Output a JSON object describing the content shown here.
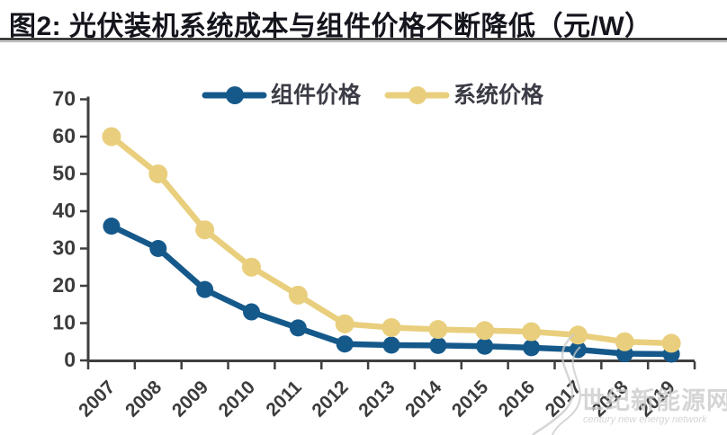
{
  "figure": {
    "title": "图2:  光伏装机系统成本与组件价格不断降低（元/W）"
  },
  "watermark": {
    "cn": "世纪新能源网",
    "en": "century new energy network",
    "color": "#c7c7c7"
  },
  "chart_data": {
    "type": "line",
    "title": "光伏装机系统成本与组件价格不断降低（元/W）",
    "xlabel": "",
    "ylabel": "",
    "categories": [
      "2007",
      "2008",
      "2009",
      "2010",
      "2011",
      "2012",
      "2013",
      "2014",
      "2015",
      "2016",
      "2017",
      "2018",
      "2019"
    ],
    "series": [
      {
        "name": "组件价格",
        "color": "#15598b",
        "values": [
          36,
          30,
          19,
          13,
          8.7,
          4.4,
          4.1,
          4.0,
          3.8,
          3.4,
          2.9,
          1.8,
          1.7
        ]
      },
      {
        "name": "系统价格",
        "color": "#e9cf7d",
        "values": [
          60,
          50,
          35,
          25,
          17.5,
          9.8,
          8.8,
          8.3,
          8.0,
          7.7,
          6.8,
          5.0,
          4.6
        ]
      }
    ],
    "ylim": [
      0,
      70
    ],
    "ytick_step": 10,
    "grid": false,
    "legend_position": "top",
    "axis_color": "#3f3f3f",
    "tick_label_color": "#3c3c3c"
  }
}
